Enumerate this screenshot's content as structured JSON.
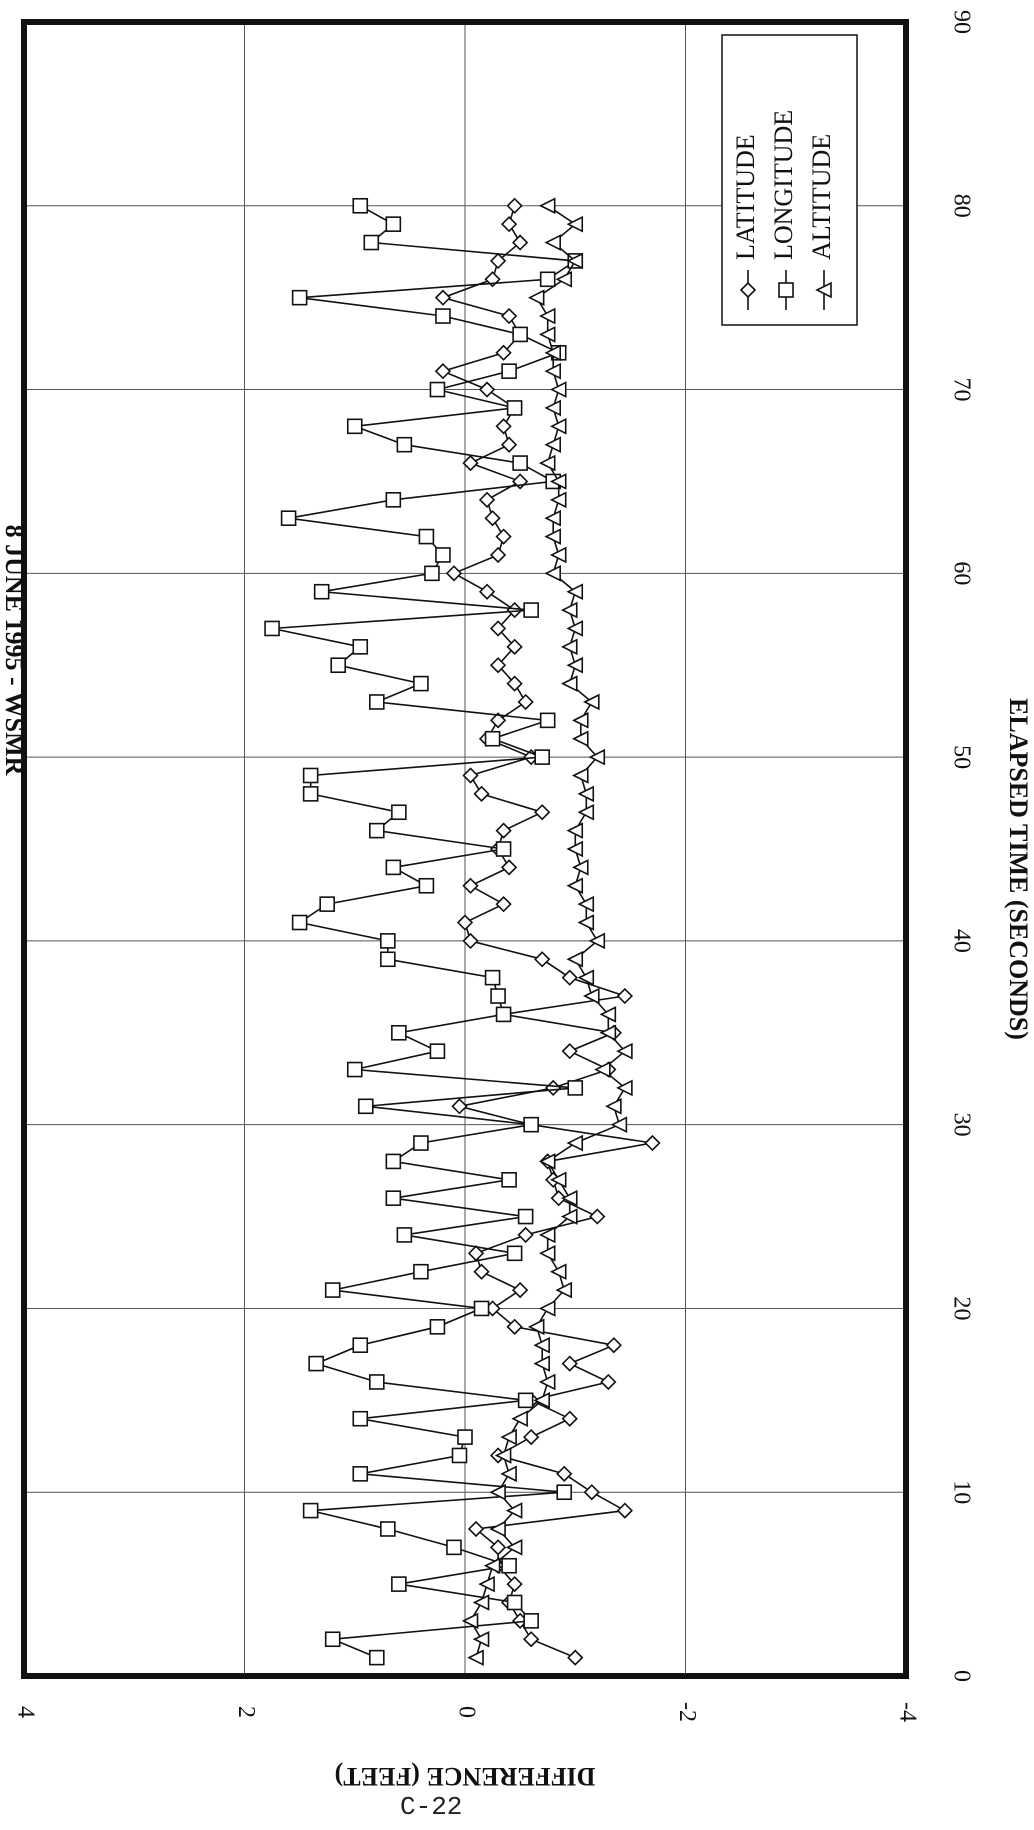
{
  "chart_data": {
    "type": "line",
    "orientation": "rotated-90-clockwise",
    "title": "8 JUNE 1995 - WSMR",
    "xlabel": "ELAPSED TIME (SECONDS)",
    "ylabel": "DIFFERENCE (FEET)",
    "xlim": [
      0,
      90
    ],
    "ylim": [
      -4,
      4
    ],
    "x_ticks": [
      "0",
      "10",
      "20",
      "30",
      "40",
      "50",
      "60",
      "70",
      "80",
      "90"
    ],
    "y_ticks": [
      "4",
      "2",
      "0",
      "-2",
      "-4"
    ],
    "grid": true,
    "legend_position": "top-right",
    "series": [
      {
        "name": "LATITUDE",
        "marker": "diamond",
        "x": [
          1,
          2,
          3,
          4,
          5,
          6,
          7,
          8,
          9,
          10,
          11,
          12,
          13,
          14,
          15,
          16,
          17,
          18,
          19,
          20,
          21,
          22,
          23,
          24,
          25,
          26,
          27,
          28,
          29,
          30,
          31,
          32,
          33,
          34,
          35,
          36,
          37,
          38,
          39,
          40,
          41,
          42,
          43,
          44,
          45,
          46,
          47,
          48,
          49,
          50,
          51,
          52,
          53,
          54,
          55,
          56,
          57,
          58,
          59,
          60,
          61,
          62,
          63,
          64,
          65,
          66,
          67,
          68,
          69,
          70,
          71,
          72,
          73,
          74,
          75,
          76,
          77,
          78,
          79,
          80
        ],
        "y": [
          -1.0,
          -0.6,
          -0.5,
          -0.4,
          -0.45,
          -0.3,
          -0.3,
          -0.1,
          -1.45,
          -1.15,
          -0.9,
          -0.3,
          -0.6,
          -0.95,
          -0.6,
          -1.3,
          -0.95,
          -1.35,
          -0.45,
          -0.25,
          -0.5,
          -0.15,
          -0.1,
          -0.55,
          -1.2,
          -0.85,
          -0.8,
          -0.75,
          -1.7,
          -0.6,
          0.05,
          -0.8,
          -1.3,
          -0.95,
          -1.35,
          -0.35,
          -1.45,
          -0.95,
          -0.7,
          -0.05,
          0.0,
          -0.35,
          -0.05,
          -0.4,
          -0.3,
          -0.35,
          -0.7,
          -0.15,
          -0.05,
          -0.6,
          -0.2,
          -0.3,
          -0.55,
          -0.45,
          -0.3,
          -0.45,
          -0.3,
          -0.45,
          -0.2,
          0.1,
          -0.3,
          -0.35,
          -0.25,
          -0.2,
          -0.5,
          -0.05,
          -0.4,
          -0.35,
          -0.45,
          -0.2,
          0.2,
          -0.35,
          -0.5,
          -0.4,
          0.2,
          -0.25,
          -0.3,
          -0.5,
          -0.4,
          -0.45
        ],
        "y_note": "estimated"
      },
      {
        "name": "LONGITUDE",
        "marker": "square",
        "x": [
          1,
          2,
          3,
          4,
          5,
          6,
          7,
          8,
          9,
          10,
          11,
          12,
          13,
          14,
          15,
          16,
          17,
          18,
          19,
          20,
          21,
          22,
          23,
          24,
          25,
          26,
          27,
          28,
          29,
          30,
          31,
          32,
          33,
          34,
          35,
          36,
          37,
          38,
          39,
          40,
          41,
          42,
          43,
          44,
          45,
          46,
          47,
          48,
          49,
          50,
          51,
          52,
          53,
          54,
          55,
          56,
          57,
          58,
          59,
          60,
          61,
          62,
          63,
          64,
          65,
          66,
          67,
          68,
          69,
          70,
          71,
          72,
          73,
          74,
          75,
          76,
          77,
          78,
          79,
          80
        ],
        "y": [
          0.8,
          1.2,
          -0.6,
          -0.45,
          0.6,
          -0.4,
          0.1,
          0.7,
          1.4,
          -0.9,
          0.95,
          0.05,
          0.0,
          0.95,
          -0.55,
          0.8,
          1.35,
          0.95,
          0.25,
          -0.15,
          1.2,
          0.4,
          -0.45,
          0.55,
          -0.55,
          0.65,
          -0.4,
          0.65,
          0.4,
          -0.6,
          0.9,
          -1.0,
          1.0,
          0.25,
          0.6,
          -0.35,
          -0.3,
          -0.25,
          0.7,
          0.7,
          1.5,
          1.25,
          0.35,
          0.65,
          -0.35,
          0.8,
          0.6,
          1.4,
          1.4,
          -0.7,
          -0.25,
          -0.75,
          0.8,
          0.4,
          1.15,
          0.95,
          1.75,
          -0.6,
          1.3,
          0.3,
          0.2,
          0.35,
          1.6,
          0.65,
          -0.8,
          -0.5,
          0.55,
          1.0,
          -0.45,
          0.25,
          -0.4,
          -0.85,
          -0.5,
          0.2,
          1.5,
          -0.75,
          -1.0,
          0.85,
          0.65,
          0.95
        ],
        "y_note": "estimated"
      },
      {
        "name": "ALTITUDE",
        "marker": "triangle",
        "x": [
          1,
          2,
          3,
          4,
          5,
          6,
          7,
          8,
          9,
          10,
          11,
          12,
          13,
          14,
          15,
          16,
          17,
          18,
          19,
          20,
          21,
          22,
          23,
          24,
          25,
          26,
          27,
          28,
          29,
          30,
          31,
          32,
          33,
          34,
          35,
          36,
          37,
          38,
          39,
          40,
          41,
          42,
          43,
          44,
          45,
          46,
          47,
          48,
          49,
          50,
          51,
          52,
          53,
          54,
          55,
          56,
          57,
          58,
          59,
          60,
          61,
          62,
          63,
          64,
          65,
          66,
          67,
          68,
          69,
          70,
          71,
          72,
          73,
          74,
          75,
          76,
          77,
          78,
          79,
          80
        ],
        "y": [
          -0.1,
          -0.15,
          -0.05,
          -0.15,
          -0.2,
          -0.25,
          -0.45,
          -0.3,
          -0.45,
          -0.3,
          -0.4,
          -0.35,
          -0.4,
          -0.5,
          -0.7,
          -0.75,
          -0.7,
          -0.7,
          -0.65,
          -0.75,
          -0.9,
          -0.85,
          -0.75,
          -0.75,
          -0.95,
          -0.95,
          -0.85,
          -0.75,
          -1.0,
          -1.4,
          -1.35,
          -1.45,
          -1.25,
          -1.45,
          -1.3,
          -1.3,
          -1.15,
          -1.1,
          -1.0,
          -1.2,
          -1.1,
          -1.1,
          -1.0,
          -1.05,
          -1.0,
          -1.0,
          -1.1,
          -1.1,
          -1.05,
          -1.2,
          -1.05,
          -1.05,
          -1.15,
          -0.95,
          -1.0,
          -0.95,
          -1.0,
          -0.95,
          -1.0,
          -0.8,
          -0.85,
          -0.8,
          -0.8,
          -0.85,
          -0.85,
          -0.75,
          -0.8,
          -0.85,
          -0.8,
          -0.85,
          -0.8,
          -0.8,
          -0.75,
          -0.75,
          -0.65,
          -0.9,
          -1.0,
          -0.8,
          -1.0,
          -0.75
        ],
        "y_note": "estimated"
      }
    ]
  },
  "page": {
    "page_number": "C-22"
  }
}
